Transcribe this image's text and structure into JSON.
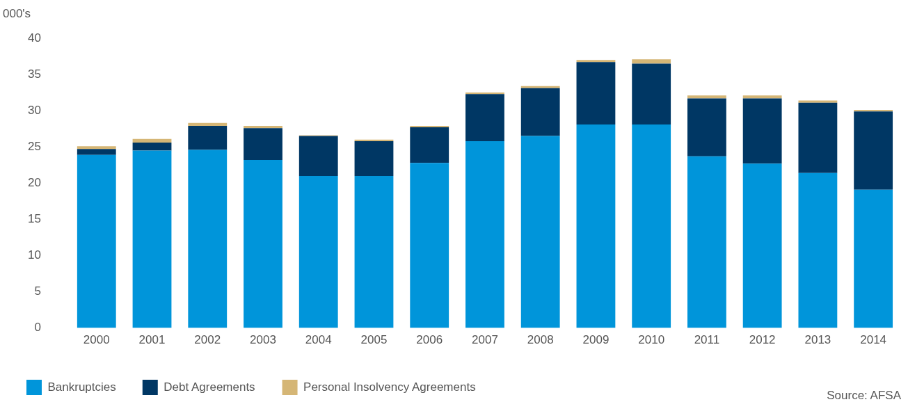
{
  "chart_data": {
    "type": "bar",
    "stacked": true,
    "ylabel": "000's",
    "categories": [
      "2000",
      "2001",
      "2002",
      "2003",
      "2004",
      "2005",
      "2006",
      "2007",
      "2008",
      "2009",
      "2010",
      "2011",
      "2012",
      "2013",
      "2014"
    ],
    "series": [
      {
        "name": "Bankruptcies",
        "color": "#0095da",
        "values": [
          23.9,
          24.5,
          24.6,
          23.2,
          21.0,
          21.0,
          22.8,
          25.8,
          26.5,
          28.1,
          28.1,
          23.7,
          22.7,
          21.4,
          19.1
        ]
      },
      {
        "name": "Debt Agreements",
        "color": "#003764",
        "values": [
          0.8,
          1.1,
          3.3,
          4.4,
          5.5,
          4.8,
          4.9,
          6.5,
          6.6,
          8.6,
          8.4,
          8.0,
          9.0,
          9.7,
          10.8
        ]
      },
      {
        "name": "Personal Insolvency Agreements",
        "color": "#d5b676",
        "values": [
          0.4,
          0.5,
          0.4,
          0.3,
          0.1,
          0.2,
          0.2,
          0.2,
          0.3,
          0.3,
          0.6,
          0.4,
          0.4,
          0.3,
          0.2
        ]
      }
    ],
    "ylim": [
      0,
      40
    ],
    "yticks": [
      0,
      5,
      10,
      15,
      20,
      25,
      30,
      35,
      40
    ],
    "grid": false,
    "legend": "bottom",
    "annotations": [
      "Source: AFSA"
    ]
  }
}
